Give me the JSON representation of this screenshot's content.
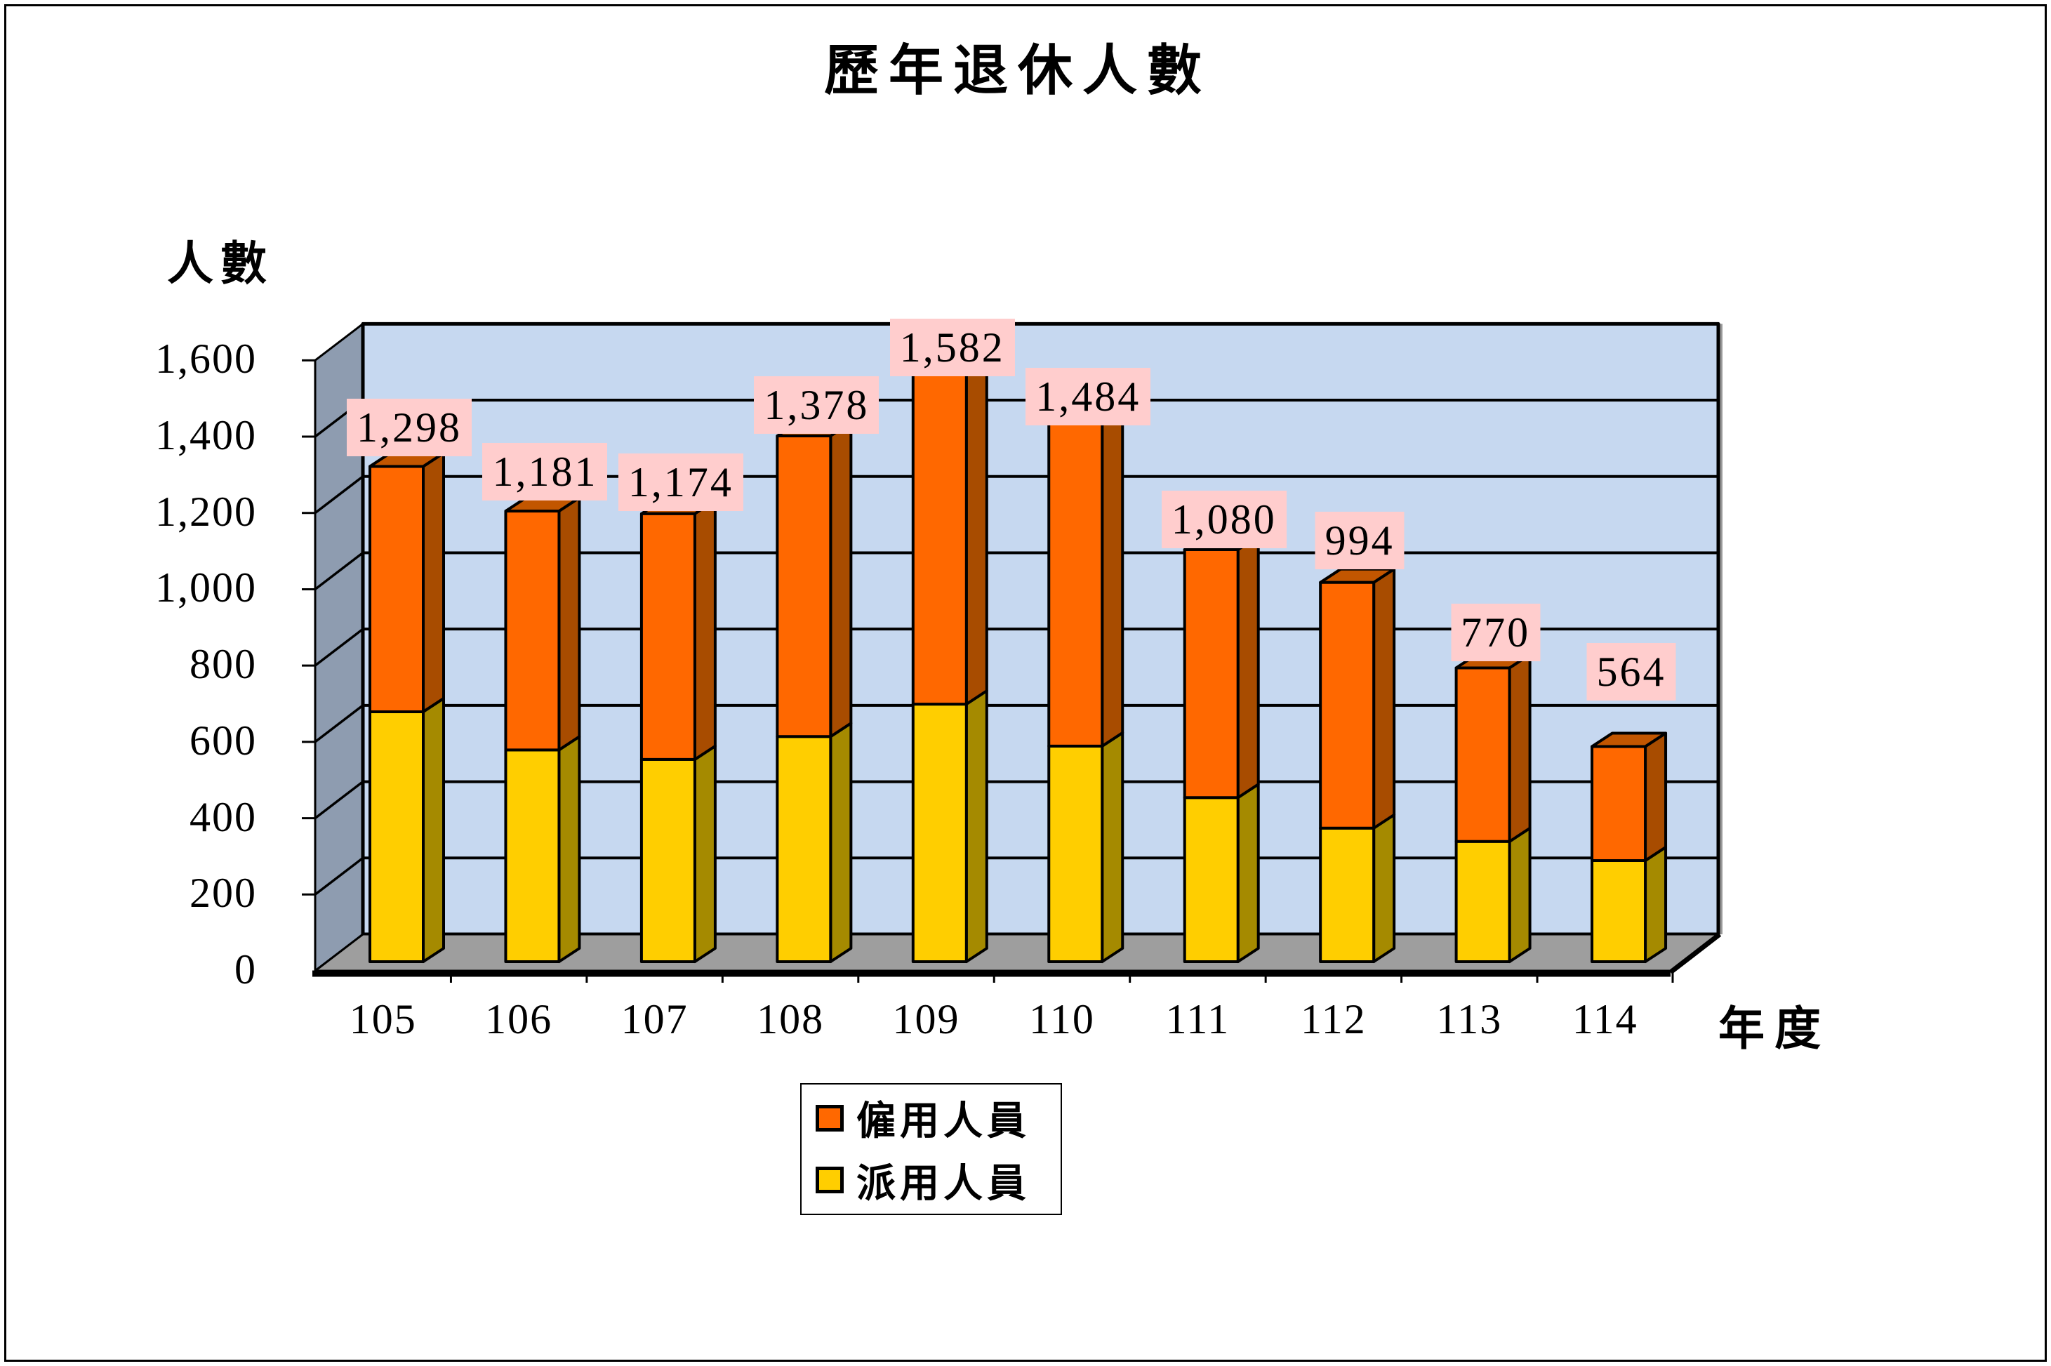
{
  "chart_data": {
    "type": "bar",
    "subtype": "stacked-3d-column",
    "title": "歷年退休人數",
    "y_axis_title": "人數",
    "x_axis_title": "年度",
    "categories": [
      "105",
      "106",
      "107",
      "108",
      "109",
      "110",
      "111",
      "112",
      "113",
      "114"
    ],
    "series": [
      {
        "name": "僱用人員",
        "color": "#FF6800",
        "side_color": "#A84C00",
        "top_color": "#C25600",
        "values": [
          643,
          626,
          644,
          788,
          907,
          919,
          650,
          644,
          455,
          299
        ]
      },
      {
        "name": "派用人員",
        "color": "#FFCE00",
        "side_color": "#A58A00",
        "top_color": "#C9A800",
        "values": [
          655,
          555,
          530,
          590,
          675,
          565,
          430,
          350,
          315,
          265
        ]
      }
    ],
    "totals": [
      1298,
      1181,
      1174,
      1378,
      1582,
      1484,
      1080,
      994,
      770,
      564
    ],
    "total_labels": [
      "1,298",
      "1,181",
      "1,174",
      "1,378",
      "1,582",
      "1,484",
      "1,080",
      "994",
      "770",
      "564"
    ],
    "y_ticks": [
      "1,600",
      "1,400",
      "1,200",
      "1,000",
      "800",
      "600",
      "400",
      "200",
      "0"
    ],
    "y_tick_values": [
      1600,
      1400,
      1200,
      1000,
      800,
      600,
      400,
      200,
      0
    ],
    "ylim": [
      0,
      1600
    ],
    "grid": true,
    "legend_position": "bottom",
    "colors": {
      "back_wall": "#C6D8F0",
      "side_wall": "#8E9CB0",
      "floor": "#9E9E9E",
      "gridline": "#000000",
      "value_label_bg": "#FFCDCD",
      "wall_shadow": "#999999"
    },
    "layout": {
      "label_dy": [
        55,
        56,
        45,
        44,
        15,
        -2,
        43,
        60,
        50,
        106
      ]
    }
  }
}
